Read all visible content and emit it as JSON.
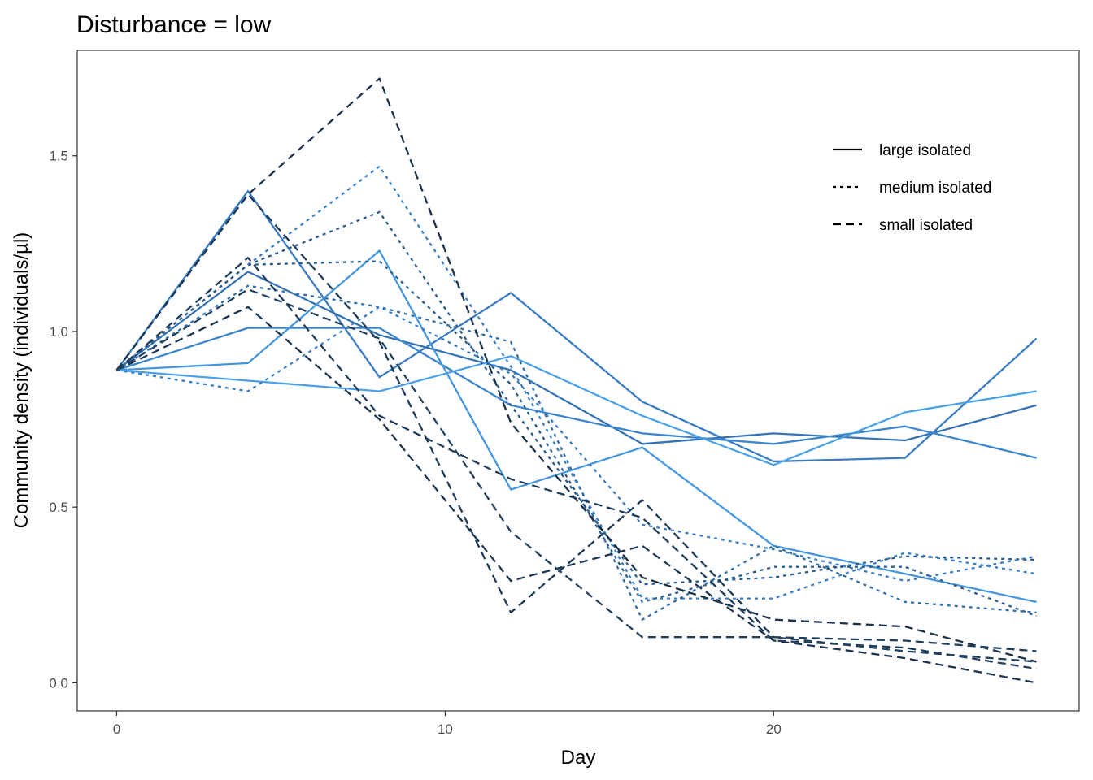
{
  "chart_data": {
    "type": "line",
    "title": "Disturbance = low",
    "xlabel": "Day",
    "ylabel": "Community density (individuals/µl)",
    "xlim": [
      -1.2,
      29.3
    ],
    "ylim": [
      -0.08,
      1.8
    ],
    "x_ticks": [
      0,
      10,
      20
    ],
    "y_ticks": [
      0.0,
      0.5,
      1.0,
      1.5
    ],
    "y_tick_labels": [
      "0.0",
      "0.5",
      "1.0",
      "1.5"
    ],
    "x_tick_labels": [
      "0",
      "10",
      "20"
    ],
    "grid": false,
    "legend_position": "top-right",
    "legend": [
      {
        "label": "large isolated",
        "dash": "solid"
      },
      {
        "label": "medium isolated",
        "dash": "dotted"
      },
      {
        "label": "small isolated",
        "dash": "dashed"
      }
    ],
    "x": [
      0,
      4,
      8,
      12,
      16,
      20,
      24,
      28
    ],
    "series": [
      {
        "group": "large isolated",
        "color": "#3a7cc2",
        "values": [
          0.89,
          1.4,
          0.87,
          1.11,
          0.8,
          0.63,
          0.64,
          0.98
        ]
      },
      {
        "group": "large isolated",
        "color": "#3673b4",
        "values": [
          0.89,
          1.17,
          0.99,
          0.89,
          0.68,
          0.71,
          0.69,
          0.79
        ]
      },
      {
        "group": "large isolated",
        "color": "#3d86cd",
        "values": [
          0.89,
          1.01,
          1.01,
          0.79,
          0.71,
          0.68,
          0.73,
          0.64
        ]
      },
      {
        "group": "large isolated",
        "color": "#4596dd",
        "values": [
          0.89,
          0.91,
          1.23,
          0.55,
          0.67,
          0.39,
          0.31,
          0.23
        ]
      },
      {
        "group": "large isolated",
        "color": "#4ba0e8",
        "values": [
          0.89,
          0.86,
          0.83,
          0.93,
          0.76,
          0.62,
          0.77,
          0.83
        ]
      },
      {
        "group": "medium isolated",
        "color": "#3a80c3",
        "values": [
          0.89,
          1.19,
          1.47,
          0.9,
          0.24,
          0.24,
          0.37,
          0.31
        ]
      },
      {
        "group": "medium isolated",
        "color": "#2d5f8f",
        "values": [
          0.89,
          1.19,
          1.2,
          0.85,
          0.23,
          0.33,
          0.33,
          0.19
        ]
      },
      {
        "group": "medium isolated",
        "color": "#336ea6",
        "values": [
          0.89,
          1.13,
          1.07,
          0.97,
          0.18,
          0.39,
          0.23,
          0.2
        ]
      },
      {
        "group": "medium isolated",
        "color": "#2c5b8a",
        "values": [
          0.89,
          1.19,
          1.34,
          0.79,
          0.28,
          0.3,
          0.36,
          0.35
        ]
      },
      {
        "group": "medium isolated",
        "color": "#3b7fc0",
        "values": [
          0.89,
          0.83,
          1.07,
          0.88,
          0.45,
          0.38,
          0.29,
          0.36
        ]
      },
      {
        "group": "small isolated",
        "color": "#1a3148",
        "values": [
          0.89,
          1.39,
          1.72,
          0.74,
          0.3,
          0.18,
          0.16,
          0.06
        ]
      },
      {
        "group": "small isolated",
        "color": "#1e3a58",
        "values": [
          0.89,
          1.39,
          0.97,
          0.2,
          0.52,
          0.13,
          0.12,
          0.09
        ]
      },
      {
        "group": "small isolated",
        "color": "#203e5c",
        "values": [
          0.89,
          1.21,
          0.76,
          0.58,
          0.47,
          0.12,
          0.1,
          0.04
        ]
      },
      {
        "group": "small isolated",
        "color": "#1c3652",
        "values": [
          0.89,
          1.07,
          0.75,
          0.29,
          0.39,
          0.12,
          0.07,
          0.0
        ]
      },
      {
        "group": "small isolated",
        "color": "#22425f",
        "values": [
          0.89,
          1.12,
          0.98,
          0.43,
          0.13,
          0.13,
          0.09,
          0.06
        ]
      }
    ]
  }
}
